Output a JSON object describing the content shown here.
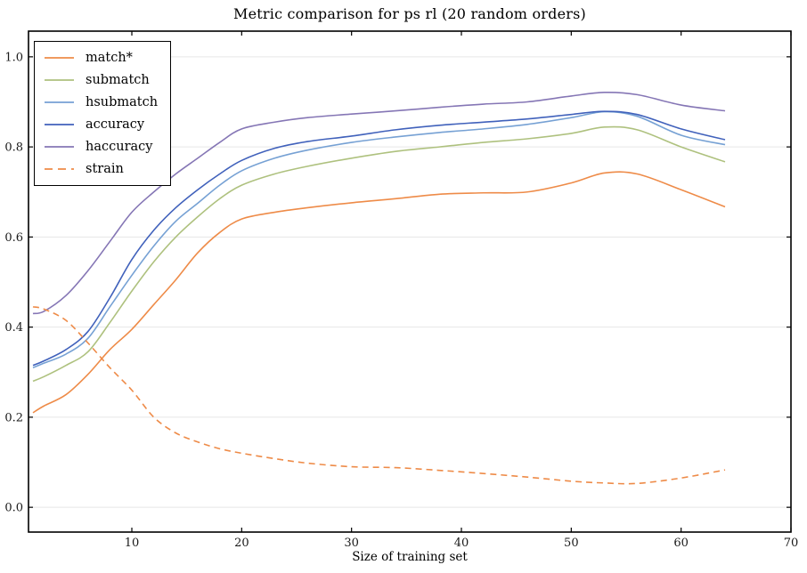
{
  "chart_data": {
    "type": "line",
    "title": "Metric comparison for ps rl (20 random orders)",
    "xlabel": "Size of training set",
    "ylabel": "",
    "xlim": [
      0.594,
      70
    ],
    "ylim": [
      -0.055,
      1.057
    ],
    "x_ticks": [
      10,
      20,
      30,
      40,
      50,
      60,
      70
    ],
    "x_tick_labels": [
      "10",
      "20",
      "30",
      "40",
      "50",
      "60",
      "70"
    ],
    "y_ticks": [
      0.0,
      0.2,
      0.4,
      0.6,
      0.8,
      1.0
    ],
    "y_tick_labels": [
      "0.0",
      "0.2",
      "0.4",
      "0.6",
      "0.8",
      "1.0"
    ],
    "grid": "horizontal",
    "grid_color": "#e6e6e6",
    "spine_color": "#000000",
    "legend_position": "upper-left",
    "x": [
      1,
      2,
      4,
      6,
      8,
      10,
      12,
      14,
      16,
      18,
      20,
      23,
      26,
      30,
      34,
      38,
      42,
      46,
      50,
      53,
      56,
      60,
      64
    ],
    "series": [
      {
        "name": "match*",
        "color": "#ee8b48",
        "style": "solid",
        "values": [
          0.21,
          0.225,
          0.25,
          0.295,
          0.35,
          0.395,
          0.45,
          0.505,
          0.565,
          0.61,
          0.64,
          0.655,
          0.665,
          0.676,
          0.685,
          0.695,
          0.698,
          0.7,
          0.72,
          0.742,
          0.74,
          0.705,
          0.667
        ]
      },
      {
        "name": "submatch",
        "color": "#aec17e",
        "style": "solid",
        "values": [
          0.28,
          0.29,
          0.315,
          0.345,
          0.41,
          0.48,
          0.545,
          0.6,
          0.645,
          0.685,
          0.715,
          0.74,
          0.757,
          0.775,
          0.79,
          0.8,
          0.81,
          0.818,
          0.83,
          0.844,
          0.838,
          0.8,
          0.767
        ]
      },
      {
        "name": "hsubmatch",
        "color": "#76a1d4",
        "style": "solid",
        "values": [
          0.31,
          0.32,
          0.34,
          0.375,
          0.445,
          0.515,
          0.58,
          0.635,
          0.675,
          0.715,
          0.747,
          0.775,
          0.793,
          0.81,
          0.822,
          0.832,
          0.84,
          0.85,
          0.865,
          0.878,
          0.868,
          0.826,
          0.805
        ]
      },
      {
        "name": "accuracy",
        "color": "#4061bb",
        "style": "solid",
        "values": [
          0.315,
          0.325,
          0.35,
          0.39,
          0.465,
          0.55,
          0.615,
          0.665,
          0.705,
          0.74,
          0.77,
          0.797,
          0.812,
          0.824,
          0.838,
          0.848,
          0.855,
          0.862,
          0.872,
          0.879,
          0.872,
          0.84,
          0.816
        ]
      },
      {
        "name": "haccuracy",
        "color": "#8576b5",
        "style": "solid",
        "values": [
          0.43,
          0.435,
          0.47,
          0.525,
          0.59,
          0.655,
          0.7,
          0.74,
          0.775,
          0.81,
          0.84,
          0.855,
          0.865,
          0.873,
          0.88,
          0.888,
          0.895,
          0.9,
          0.913,
          0.921,
          0.916,
          0.893,
          0.88
        ]
      },
      {
        "name": "strain",
        "color": "#ee8b48",
        "style": "dashed",
        "values": [
          0.445,
          0.44,
          0.415,
          0.365,
          0.31,
          0.26,
          0.2,
          0.165,
          0.145,
          0.13,
          0.12,
          0.108,
          0.098,
          0.09,
          0.088,
          0.082,
          0.075,
          0.067,
          0.058,
          0.054,
          0.053,
          0.065,
          0.083
        ]
      }
    ]
  }
}
